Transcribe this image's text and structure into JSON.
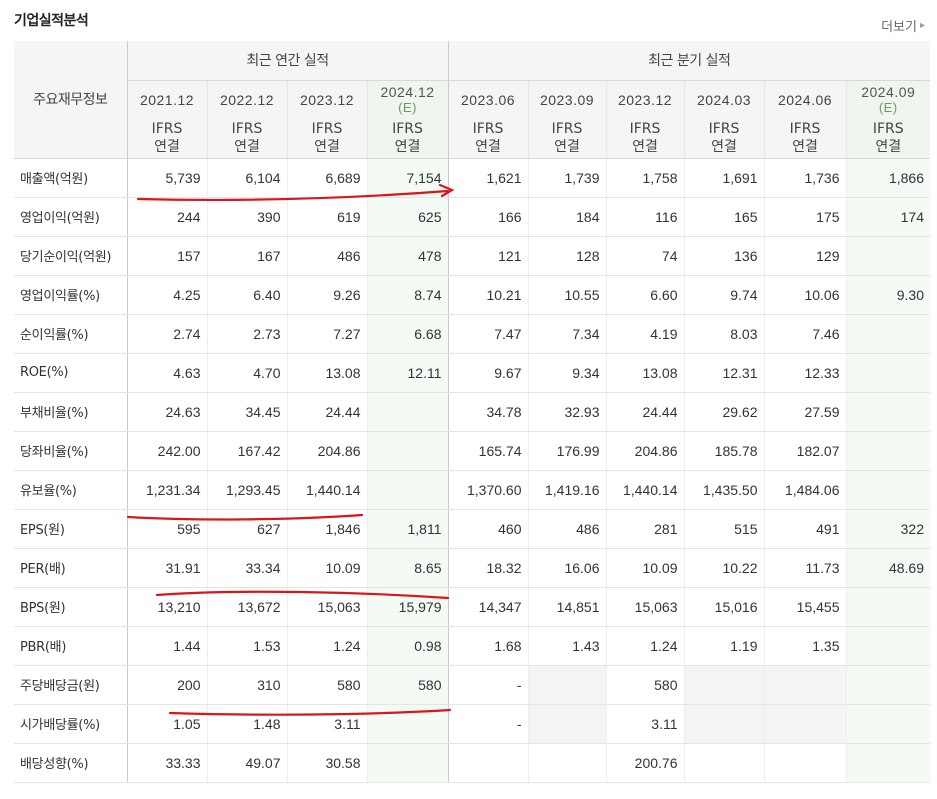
{
  "header": {
    "title": "기업실적분석",
    "more_label": "더보기"
  },
  "table": {
    "corner_label": "주요재무정보",
    "groups": {
      "annual": "최근 연간 실적",
      "quarter": "최근 분기 실적"
    },
    "periods": [
      {
        "date": "2021.12",
        "est": "",
        "std": "IFRS",
        "basis": "연결"
      },
      {
        "date": "2022.12",
        "est": "",
        "std": "IFRS",
        "basis": "연결"
      },
      {
        "date": "2023.12",
        "est": "",
        "std": "IFRS",
        "basis": "연결"
      },
      {
        "date": "2024.12",
        "est": "(E)",
        "std": "IFRS",
        "basis": "연결"
      },
      {
        "date": "2023.06",
        "est": "",
        "std": "IFRS",
        "basis": "연결"
      },
      {
        "date": "2023.09",
        "est": "",
        "std": "IFRS",
        "basis": "연결"
      },
      {
        "date": "2023.12",
        "est": "",
        "std": "IFRS",
        "basis": "연결"
      },
      {
        "date": "2024.03",
        "est": "",
        "std": "IFRS",
        "basis": "연결"
      },
      {
        "date": "2024.06",
        "est": "",
        "std": "IFRS",
        "basis": "연결"
      },
      {
        "date": "2024.09",
        "est": "(E)",
        "std": "IFRS",
        "basis": "연결"
      }
    ],
    "rows": [
      {
        "label": "매출액(억원)",
        "values": [
          "5,739",
          "6,104",
          "6,689",
          "7,154",
          "1,621",
          "1,739",
          "1,758",
          "1,691",
          "1,736",
          "1,866"
        ]
      },
      {
        "label": "영업이익(억원)",
        "values": [
          "244",
          "390",
          "619",
          "625",
          "166",
          "184",
          "116",
          "165",
          "175",
          "174"
        ]
      },
      {
        "label": "당기순이익(억원)",
        "values": [
          "157",
          "167",
          "486",
          "478",
          "121",
          "128",
          "74",
          "136",
          "129",
          ""
        ]
      },
      {
        "label": "영업이익률(%)",
        "values": [
          "4.25",
          "6.40",
          "9.26",
          "8.74",
          "10.21",
          "10.55",
          "6.60",
          "9.74",
          "10.06",
          "9.30"
        ]
      },
      {
        "label": "순이익률(%)",
        "values": [
          "2.74",
          "2.73",
          "7.27",
          "6.68",
          "7.47",
          "7.34",
          "4.19",
          "8.03",
          "7.46",
          ""
        ]
      },
      {
        "label": "ROE(%)",
        "values": [
          "4.63",
          "4.70",
          "13.08",
          "12.11",
          "9.67",
          "9.34",
          "13.08",
          "12.31",
          "12.33",
          ""
        ]
      },
      {
        "label": "부채비율(%)",
        "values": [
          "24.63",
          "34.45",
          "24.44",
          "",
          "34.78",
          "32.93",
          "24.44",
          "29.62",
          "27.59",
          ""
        ]
      },
      {
        "label": "당좌비율(%)",
        "values": [
          "242.00",
          "167.42",
          "204.86",
          "",
          "165.74",
          "176.99",
          "204.86",
          "185.78",
          "182.07",
          ""
        ]
      },
      {
        "label": "유보율(%)",
        "values": [
          "1,231.34",
          "1,293.45",
          "1,440.14",
          "",
          "1,370.60",
          "1,419.16",
          "1,440.14",
          "1,435.50",
          "1,484.06",
          ""
        ]
      },
      {
        "label": "EPS(원)",
        "values": [
          "595",
          "627",
          "1,846",
          "1,811",
          "460",
          "486",
          "281",
          "515",
          "491",
          "322"
        ]
      },
      {
        "label": "PER(배)",
        "values": [
          "31.91",
          "33.34",
          "10.09",
          "8.65",
          "18.32",
          "16.06",
          "10.09",
          "10.22",
          "11.73",
          "48.69"
        ]
      },
      {
        "label": "BPS(원)",
        "values": [
          "13,210",
          "13,672",
          "15,063",
          "15,979",
          "14,347",
          "14,851",
          "15,063",
          "15,016",
          "15,455",
          ""
        ]
      },
      {
        "label": "PBR(배)",
        "values": [
          "1.44",
          "1.53",
          "1.24",
          "0.98",
          "1.68",
          "1.43",
          "1.24",
          "1.19",
          "1.35",
          ""
        ]
      },
      {
        "label": "주당배당금(원)",
        "values": [
          "200",
          "310",
          "580",
          "580",
          "-",
          "",
          "580",
          "",
          "",
          ""
        ]
      },
      {
        "label": "시가배당률(%)",
        "values": [
          "1.05",
          "1.48",
          "3.11",
          "",
          "-",
          "",
          "3.11",
          "",
          "",
          ""
        ]
      },
      {
        "label": "배당성향(%)",
        "values": [
          "33.33",
          "49.07",
          "30.58",
          "",
          "",
          "",
          "200.76",
          "",
          "",
          ""
        ]
      }
    ]
  },
  "annotation_color": "#d9161b"
}
